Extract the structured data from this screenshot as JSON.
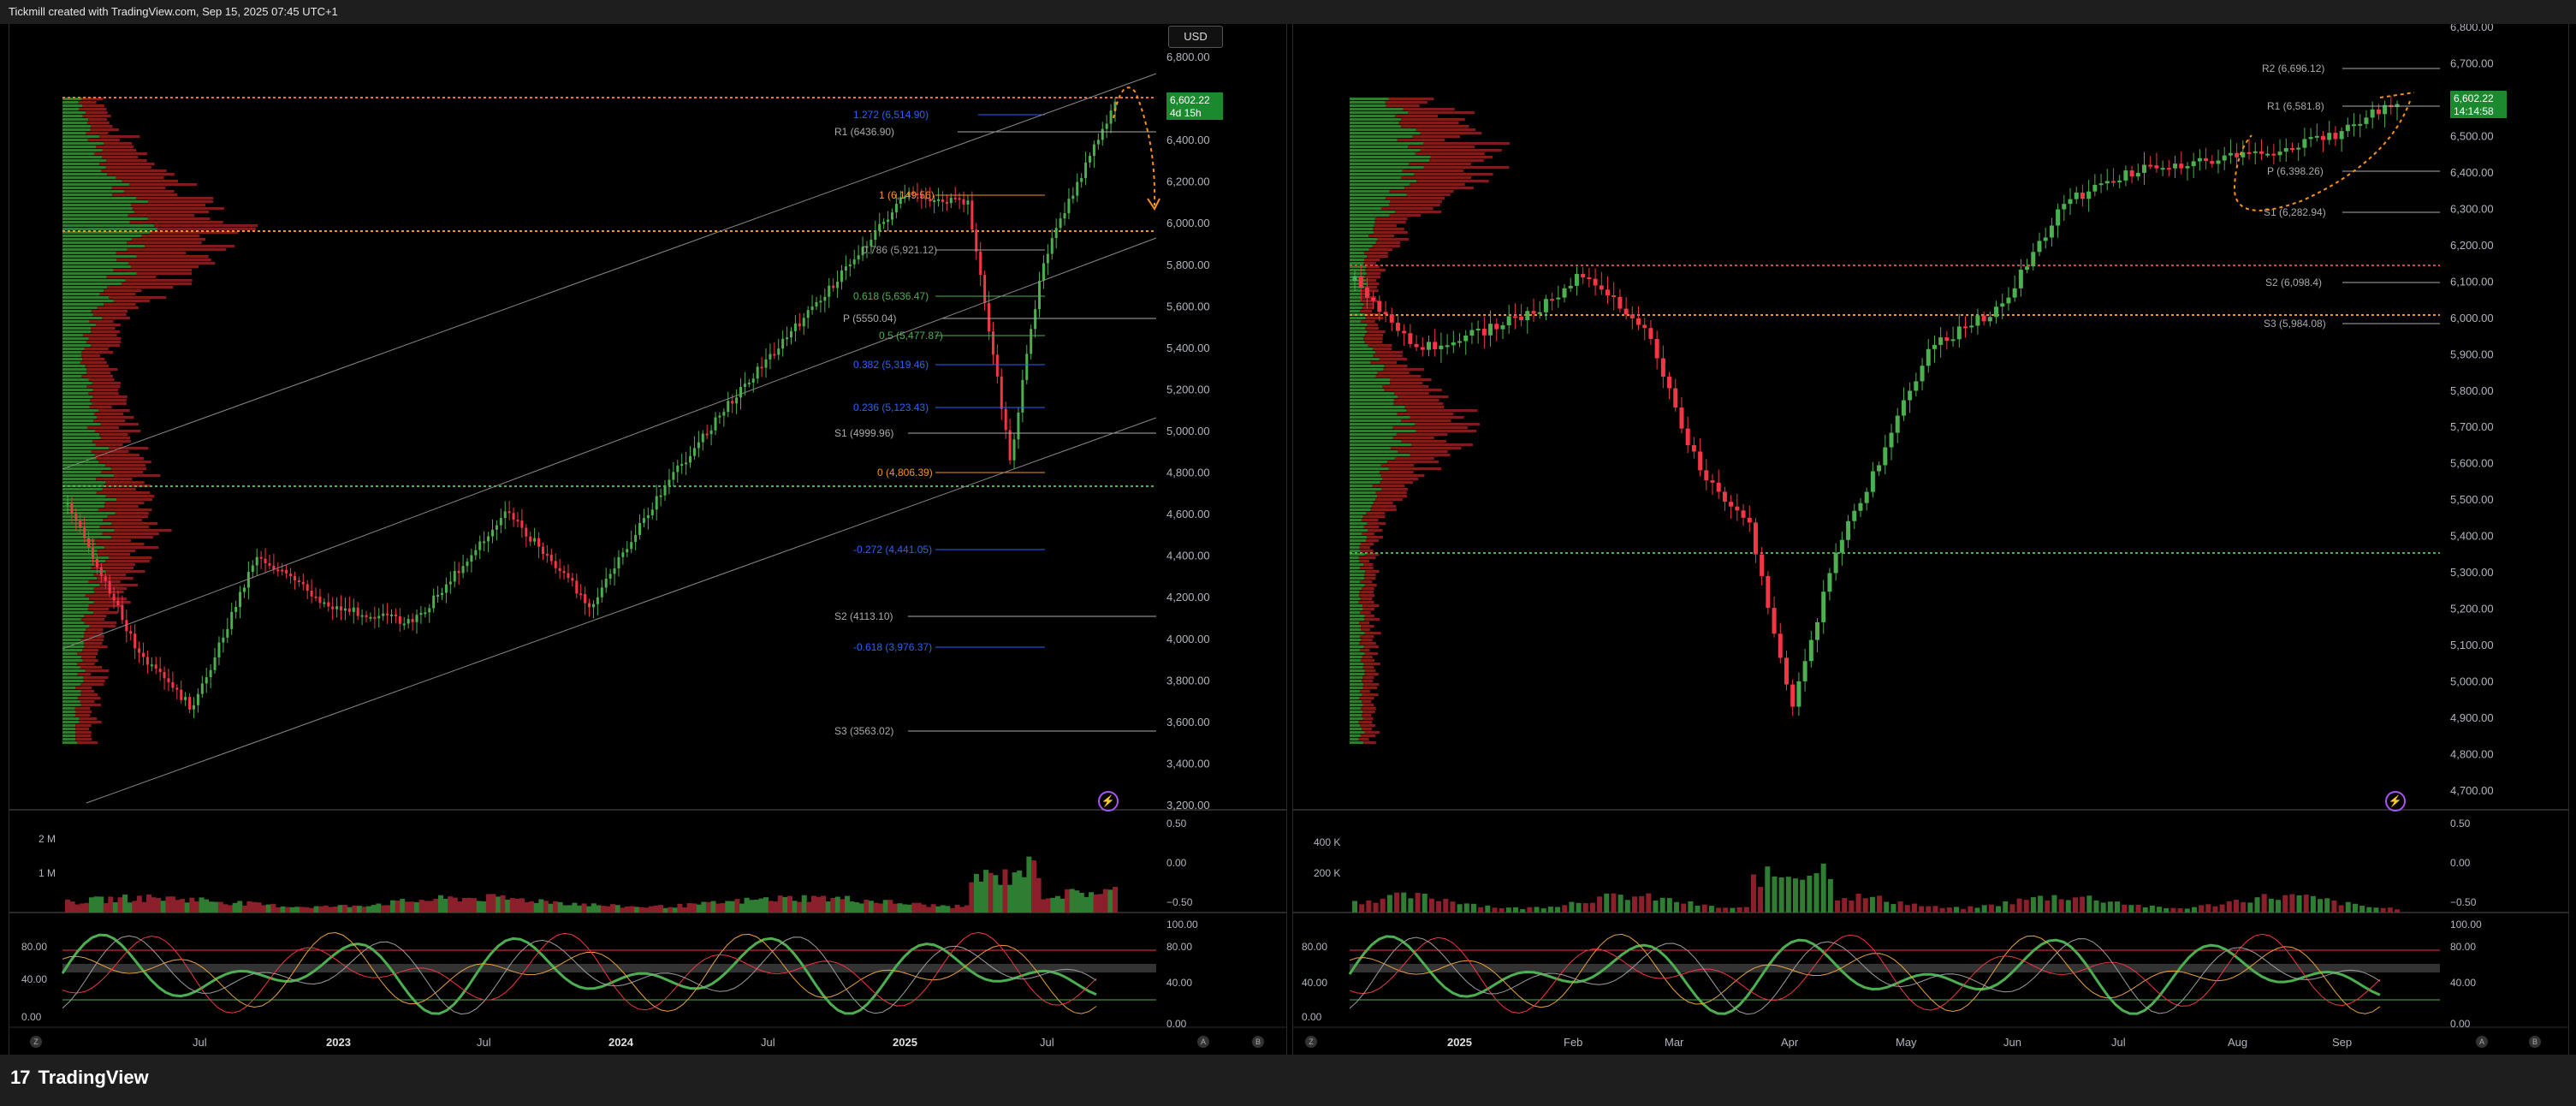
{
  "header": {
    "title": "Tickmill created with TradingView.com, Sep 15, 2025 07:45 UTC+1"
  },
  "footer": {
    "brand": "TradingView",
    "logo_text": "17"
  },
  "left_chart": {
    "currency": "USD",
    "price_axis": [
      "6,800.00",
      "6,600.00",
      "6,400.00",
      "6,200.00",
      "6,000.00",
      "5,800.00",
      "5,600.00",
      "5,400.00",
      "5,200.00",
      "5,000.00",
      "4,800.00",
      "4,600.00",
      "4,400.00",
      "4,200.00",
      "4,000.00",
      "3,800.00",
      "3,600.00",
      "3,400.00",
      "3,200.00"
    ],
    "last_price": "6,602.22",
    "countdown": "4d 15h",
    "levels": [
      {
        "label": "1.272 (6,514.90)",
        "color": "#2962ff"
      },
      {
        "label": "R1 (6436.90)",
        "color": "#aaaaaa"
      },
      {
        "label": "1 (6,149.56)",
        "color": "#f7931a"
      },
      {
        "label": "0.786 (5,921.12)",
        "color": "#9e9e9e"
      },
      {
        "label": "0.618 (5,636.47)",
        "color": "#4caf50"
      },
      {
        "label": "P (5550.04)",
        "color": "#aaaaaa"
      },
      {
        "label": "0.5 (5,477.87)",
        "color": "#4caf50"
      },
      {
        "label": "0.382 (5,319.46)",
        "color": "#2962ff"
      },
      {
        "label": "0.236 (5,123.43)",
        "color": "#2962ff"
      },
      {
        "label": "S1 (4999.96)",
        "color": "#aaaaaa"
      },
      {
        "label": "0 (4,806.39)",
        "color": "#f7931a"
      },
      {
        "label": "-0.272 (4,441.05)",
        "color": "#2962ff"
      },
      {
        "label": "S2 (4113.10)",
        "color": "#aaaaaa"
      },
      {
        "label": "-0.618 (3,976.37)",
        "color": "#2962ff"
      },
      {
        "label": "S3 (3563.02)",
        "color": "#aaaaaa"
      }
    ],
    "volume_axis": [
      "0.50",
      "0.00",
      "−0.50"
    ],
    "volume_labels": [
      "2 M",
      "1 M"
    ],
    "osc_axis_left": [
      "80.00",
      "40.00",
      "0.00"
    ],
    "osc_axis_right": [
      "100.00",
      "80.00",
      "40.00",
      "0.00"
    ],
    "time_axis": [
      "Jul",
      "2023",
      "Jul",
      "2024",
      "Jul",
      "2025",
      "Jul"
    ]
  },
  "right_chart": {
    "price_axis": [
      "6,800.00",
      "6,700.00",
      "6,600.00",
      "6,500.00",
      "6,400.00",
      "6,300.00",
      "6,200.00",
      "6,100.00",
      "6,000.00",
      "5,900.00",
      "5,800.00",
      "5,700.00",
      "5,600.00",
      "5,500.00",
      "5,400.00",
      "5,300.00",
      "5,200.00",
      "5,100.00",
      "5,000.00",
      "4,900.00",
      "4,800.00",
      "4,700.00"
    ],
    "last_price": "6,602.22",
    "countdown": "14:14:58",
    "levels": [
      {
        "label": "R2 (6,696.12)",
        "color": "#aaaaaa"
      },
      {
        "label": "R1 (6,581.8)",
        "color": "#aaaaaa"
      },
      {
        "label": "P (6,398.26)",
        "color": "#aaaaaa"
      },
      {
        "label": "S1 (6,282.94)",
        "color": "#aaaaaa"
      },
      {
        "label": "S2 (6,098.4)",
        "color": "#aaaaaa"
      },
      {
        "label": "S3 (5,984.08)",
        "color": "#aaaaaa"
      }
    ],
    "volume_axis": [
      "0.50",
      "0.00",
      "−0.50"
    ],
    "volume_labels": [
      "400 K",
      "200 K"
    ],
    "osc_axis_left": [
      "80.00",
      "40.00",
      "0.00"
    ],
    "osc_axis_right": [
      "100.00",
      "80.00",
      "40.00",
      "0.00"
    ],
    "time_axis": [
      "2025",
      "Feb",
      "Mar",
      "Apr",
      "May",
      "Jun",
      "Jul",
      "Aug",
      "Sep"
    ]
  },
  "colors": {
    "up": "#4caf50",
    "down": "#f23645",
    "badge": "#1b8a2f",
    "profile_up": "#2e7d32",
    "profile_down": "#7f1d1d",
    "orange": "#f7931a"
  }
}
